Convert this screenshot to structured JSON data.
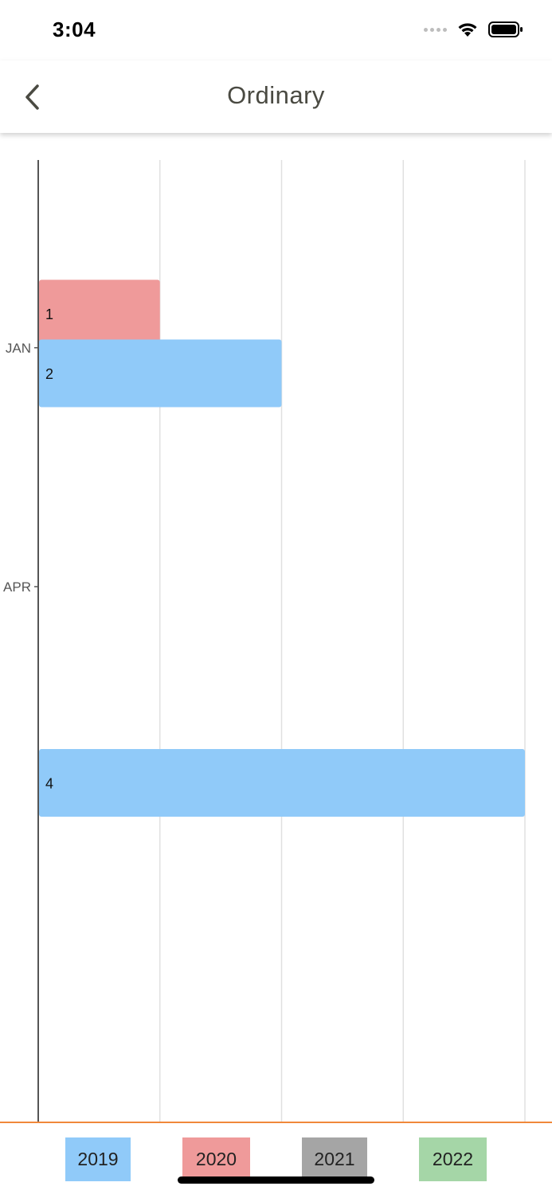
{
  "status_bar": {
    "time": "3:04",
    "icons": [
      "signal-dots-icon",
      "wifi-icon",
      "battery-icon"
    ]
  },
  "nav": {
    "title": "Ordinary",
    "back_icon": "chevron-left-icon"
  },
  "chart_data": {
    "type": "bar",
    "orientation": "horizontal",
    "categories": [
      "JAN",
      "APR"
    ],
    "series": [
      {
        "name": "2020",
        "color": "#ef9a9a",
        "bars": [
          {
            "position": 0.36,
            "value": 1,
            "label": "1"
          }
        ]
      },
      {
        "name": "2019",
        "color": "#90caf9",
        "bars": [
          {
            "position": 0.5,
            "value": 2,
            "label": "2"
          },
          {
            "position": 1.46,
            "value": 4,
            "label": "4"
          }
        ]
      }
    ],
    "category_positions": [
      0.44,
      1.0
    ],
    "xlim": [
      0,
      4
    ],
    "grid": true,
    "legend": "bottom"
  },
  "legend": {
    "items": [
      {
        "label": "2019",
        "color": "#90caf9"
      },
      {
        "label": "2020",
        "color": "#ef9a9a"
      },
      {
        "label": "2021",
        "color": "#a5a5a5"
      },
      {
        "label": "2022",
        "color": "#a5d6a7"
      }
    ]
  }
}
